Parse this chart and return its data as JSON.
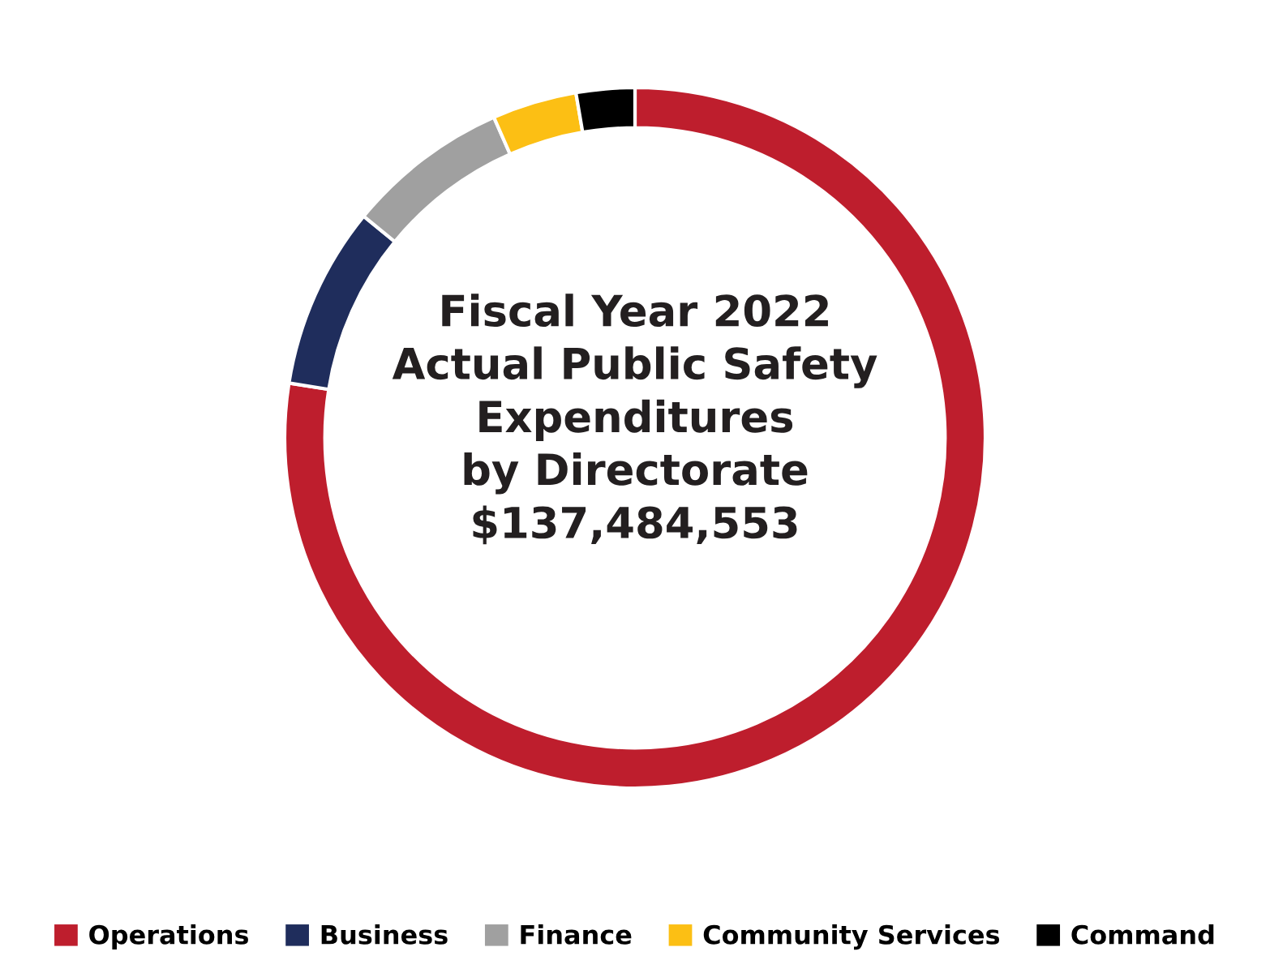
{
  "chart_data": {
    "type": "donut",
    "title": "Fiscal Year 2022\nActual Public Safety\nExpenditures\nby Directorate\n$137,484,553",
    "categories": [
      "Operations",
      "Business",
      "Finance",
      "Community Services",
      "Command"
    ],
    "values": [
      77.5,
      8.4,
      7.5,
      3.9,
      2.7
    ],
    "colors": [
      "#be1e2d",
      "#1f2d5c",
      "#a0a0a0",
      "#fcbf14",
      "#000000"
    ],
    "legend": "bottom"
  }
}
